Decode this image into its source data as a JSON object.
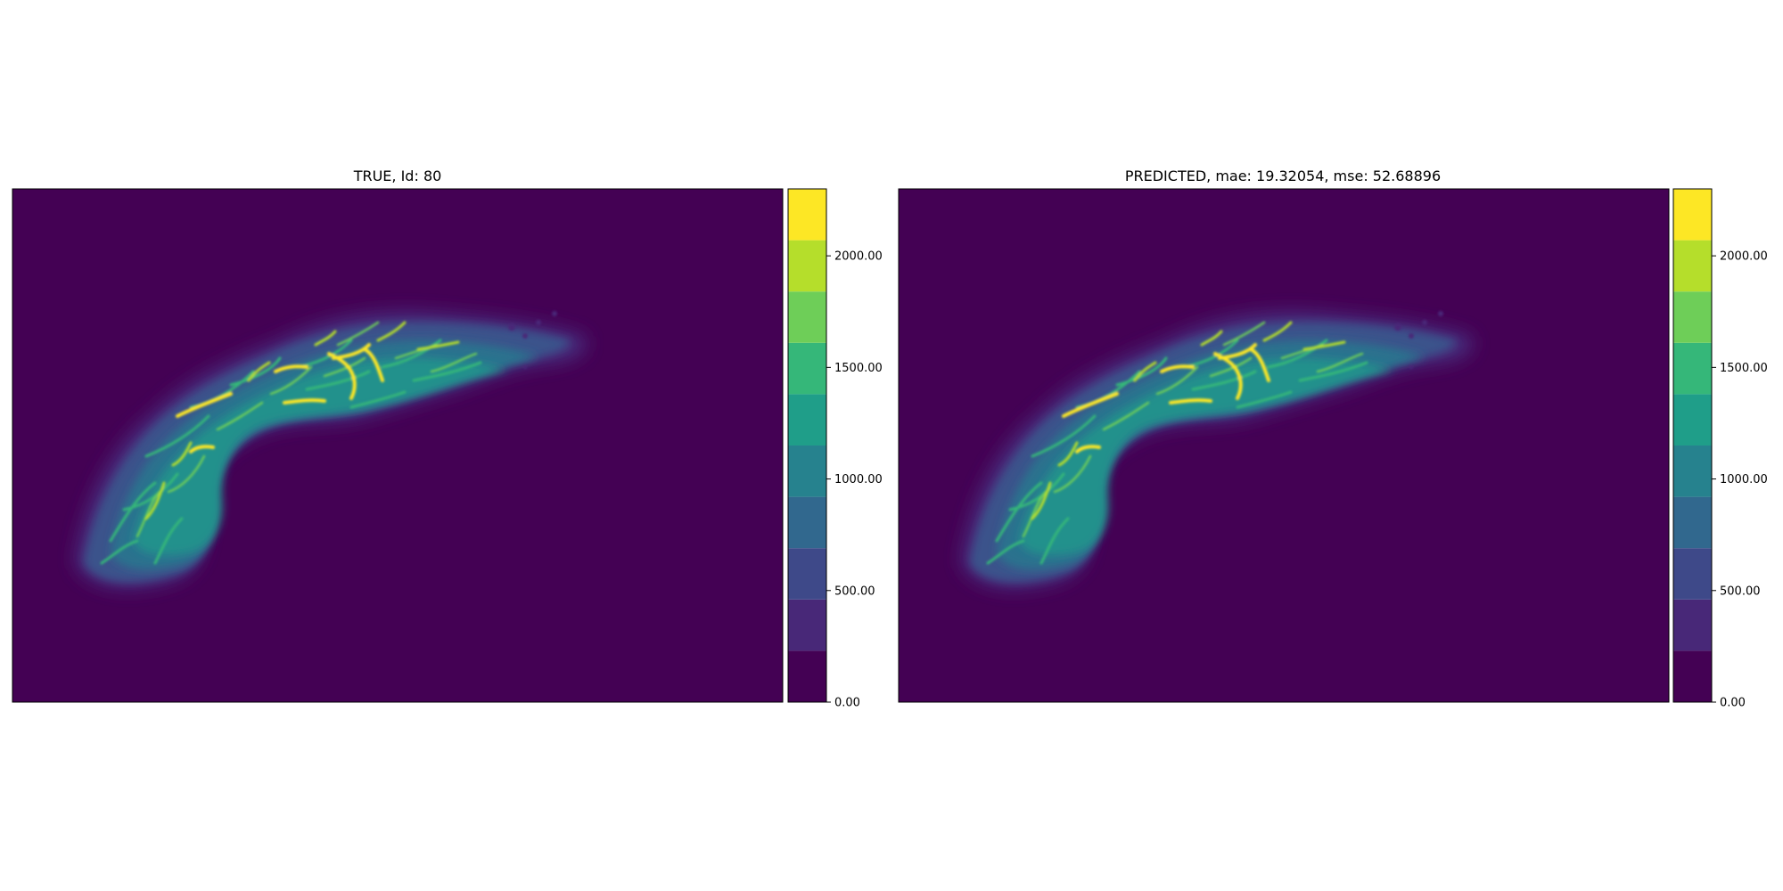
{
  "figure": {
    "colormap": [
      "#440154",
      "#482878",
      "#3e4989",
      "#31688e",
      "#26828e",
      "#1f9e89",
      "#35b779",
      "#6ece58",
      "#b5de2b",
      "#fde725"
    ],
    "background_color": "#440154"
  },
  "chart_data": [
    {
      "type": "heatmap",
      "title": "TRUE, Id: 80",
      "xlabel": "",
      "ylabel": "",
      "grid": false,
      "colorbar": {
        "levels": [
          0,
          230,
          460,
          690,
          920,
          1150,
          1380,
          1610,
          1840,
          2070,
          2300
        ],
        "tick_values": [
          0,
          500,
          1000,
          1500,
          2000
        ],
        "tick_labels": [
          "0.00",
          "500.00",
          "1000.00",
          "1500.00",
          "2000.00"
        ],
        "range": [
          0,
          2300
        ]
      }
    },
    {
      "type": "heatmap",
      "title": "PREDICTED, mae: 19.32054, mse: 52.68896",
      "xlabel": "",
      "ylabel": "",
      "grid": false,
      "colorbar": {
        "levels": [
          0,
          230,
          460,
          690,
          920,
          1150,
          1380,
          1610,
          1840,
          2070,
          2300
        ],
        "tick_values": [
          0,
          500,
          1000,
          1500,
          2000
        ],
        "tick_labels": [
          "0.00",
          "500.00",
          "1000.00",
          "1500.00",
          "2000.00"
        ],
        "range": [
          0,
          2300
        ]
      }
    }
  ]
}
